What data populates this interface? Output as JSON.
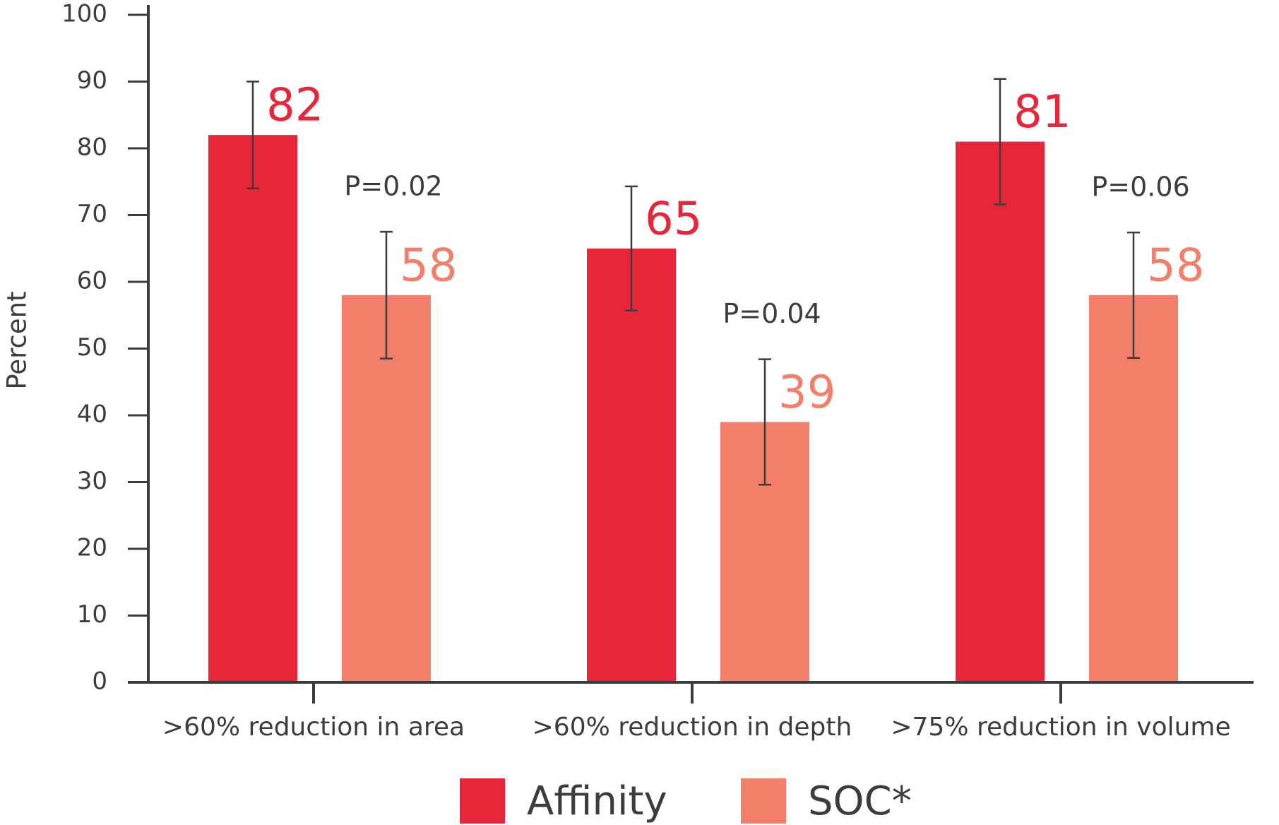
{
  "chart_data": {
    "type": "bar",
    "y_label": "Percent",
    "categories": [
      ">60% reduction in area",
      ">60% reduction in depth",
      ">75% reduction in volume"
    ],
    "series": [
      {
        "name": "Affinity",
        "color": "#e8263a",
        "values": [
          82,
          65,
          81
        ],
        "errors": [
          8,
          9.3,
          9.4
        ]
      },
      {
        "name": "SOC*",
        "color": "#f37f6b",
        "values": [
          58,
          39,
          58
        ],
        "errors": [
          9.5,
          9.4,
          9.4
        ]
      }
    ],
    "annotations": [
      "P=0.02",
      "P=0.04",
      "P=0.06"
    ],
    "ylim": [
      0,
      100
    ],
    "yticks": [
      0,
      10,
      20,
      30,
      40,
      50,
      60,
      70,
      80,
      90,
      100
    ]
  }
}
